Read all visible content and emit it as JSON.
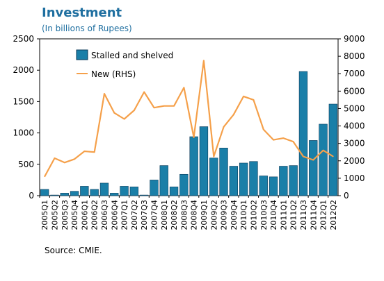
{
  "header": {
    "title": "Investment",
    "subtitle": "(In billions of Rupees)"
  },
  "source": "Source: CMIE.",
  "colors": {
    "bar": "#1a7fa8",
    "bar_stroke": "#0b3b5a",
    "line": "#f5a04a",
    "title": "#1f6fa0"
  },
  "chart_data": {
    "type": "bar",
    "categories": [
      "2005Q1",
      "2005Q2",
      "2005Q3",
      "2005Q4",
      "2006Q1",
      "2006Q2",
      "2006Q3",
      "2006Q4",
      "2007Q1",
      "2007Q2",
      "2007Q3",
      "2007Q4",
      "2008Q1",
      "2008Q2",
      "2008Q3",
      "2008Q4",
      "2009Q1",
      "2009Q2",
      "2009Q3",
      "2009Q4",
      "2010Q1",
      "2010Q2",
      "2010Q3",
      "2010Q4",
      "2011Q1",
      "2011Q2",
      "2011Q3",
      "2011Q4",
      "2012Q1",
      "2012Q2"
    ],
    "series": [
      {
        "name": "Stalled and shelved",
        "type": "bar",
        "axis": "left",
        "values": [
          100,
          10,
          40,
          70,
          150,
          100,
          200,
          40,
          150,
          140,
          10,
          250,
          480,
          140,
          340,
          940,
          1100,
          600,
          760,
          470,
          520,
          545,
          315,
          300,
          470,
          480,
          1980,
          880,
          1140,
          1460
        ]
      },
      {
        "name": "New (RHS)",
        "type": "line",
        "axis": "right",
        "values": [
          1100,
          2150,
          1900,
          2100,
          2550,
          2500,
          5850,
          4750,
          4400,
          4900,
          5950,
          5050,
          5150,
          5150,
          6200,
          3350,
          7750,
          2250,
          3950,
          4650,
          5700,
          5500,
          3800,
          3200,
          3300,
          3100,
          2250,
          2050,
          2600,
          2250
        ]
      }
    ],
    "ylim_left": [
      0,
      2500
    ],
    "yticks_left": [
      0,
      500,
      1000,
      1500,
      2000,
      2500
    ],
    "ylim_right": [
      0,
      9000
    ],
    "yticks_right": [
      0,
      1000,
      2000,
      3000,
      4000,
      5000,
      6000,
      7000,
      8000,
      9000
    ],
    "legend_position": "top-left",
    "grid": false
  }
}
